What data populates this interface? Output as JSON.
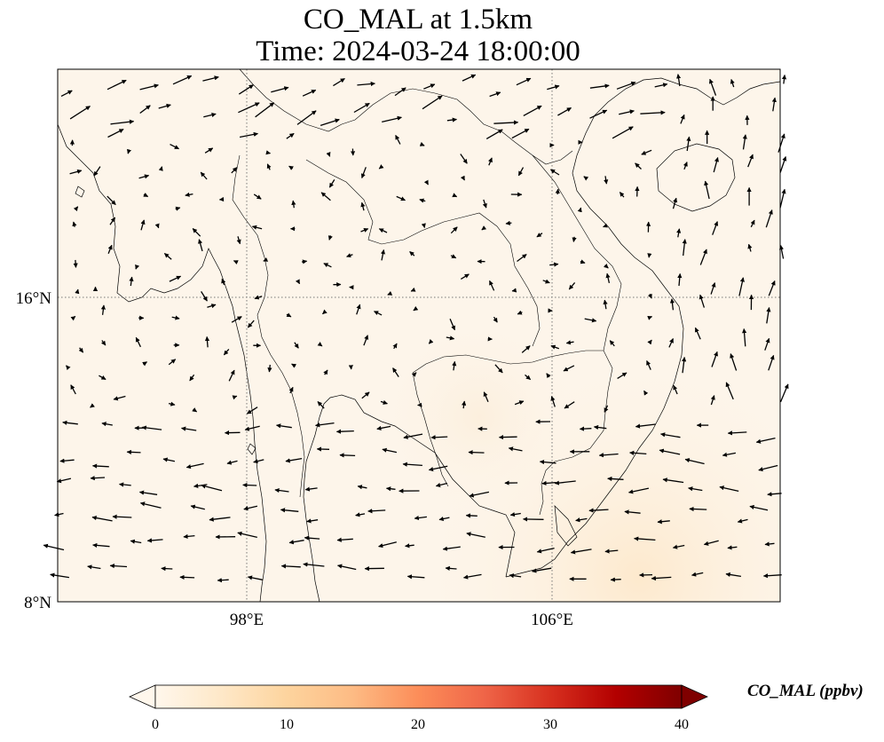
{
  "title": {
    "line1": "CO_MAL at 1.5km",
    "line2": "Time: 2024-03-24 18:00:00"
  },
  "map": {
    "variable": "CO_MAL",
    "level": "1.5km",
    "time": "2024-03-24 18:00:00",
    "extent": {
      "lon": [
        91.8,
        115.5
      ],
      "lat": [
        8,
        22
      ]
    },
    "lon_ticks": [
      {
        "value": 98,
        "label": "98°E"
      },
      {
        "value": 106,
        "label": "106°E"
      }
    ],
    "lat_ticks": [
      {
        "value": 16,
        "label": "16°N"
      },
      {
        "value": 8,
        "label": "8°N"
      }
    ],
    "gridlines": true,
    "field_description": "near-zero CO concentrations, slightly higher toward the southeast",
    "wind_vectors": true
  },
  "colorbar": {
    "label": "CO_MAL (ppbv)",
    "colormap": "OrRd",
    "min": 0,
    "max": 40,
    "ticks": [
      "0",
      "10",
      "20",
      "30",
      "40"
    ],
    "extend": "both",
    "colors": [
      "#fff7ec",
      "#fee8c8",
      "#fdd49e",
      "#fdbb84",
      "#fc8d59",
      "#ef6548",
      "#d7301f",
      "#b30000",
      "#7f0000"
    ]
  }
}
